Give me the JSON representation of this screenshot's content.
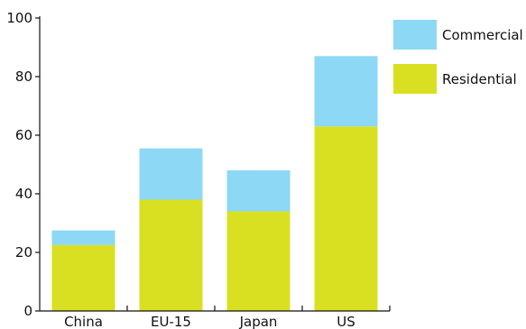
{
  "chart_data": {
    "type": "bar",
    "stacked": true,
    "categories": [
      "China",
      "EU-15",
      "Japan",
      "US"
    ],
    "series": [
      {
        "name": "Residential",
        "values": [
          22.5,
          38,
          34,
          63
        ],
        "color": "#d9e021"
      },
      {
        "name": "Commercial",
        "values": [
          5,
          17.5,
          14,
          24
        ],
        "color": "#8dd8f5"
      }
    ],
    "ylim": [
      0,
      100
    ],
    "yticks": [
      0,
      20,
      40,
      60,
      80,
      100
    ],
    "title": "",
    "xlabel": "",
    "ylabel": "",
    "grid": false,
    "legend_position": "top-right"
  }
}
